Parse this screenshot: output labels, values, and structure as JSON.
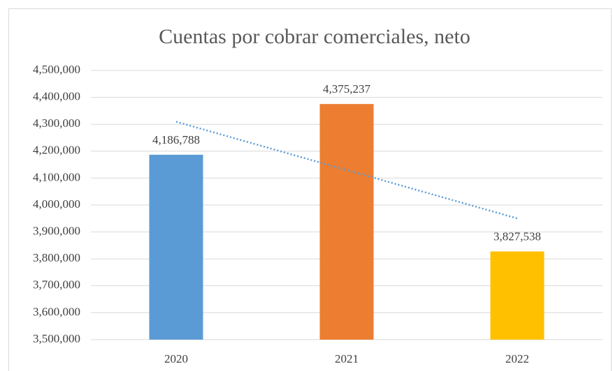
{
  "chart_data": {
    "type": "bar",
    "title": "Cuentas por cobrar comerciales, neto",
    "categories": [
      "2020",
      "2021",
      "2022"
    ],
    "values": [
      4186788,
      4375237,
      3827538
    ],
    "value_labels": [
      "4,186,788",
      "4,375,237",
      "3,827,538"
    ],
    "colors": [
      "#5b9bd5",
      "#ed7d31",
      "#ffc000"
    ],
    "ylim": [
      3500000,
      4500000
    ],
    "yticks": [
      {
        "value": 3500000,
        "label": "3,500,000"
      },
      {
        "value": 3600000,
        "label": "3,600,000"
      },
      {
        "value": 3700000,
        "label": "3,700,000"
      },
      {
        "value": 3800000,
        "label": "3,800,000"
      },
      {
        "value": 3900000,
        "label": "3,900,000"
      },
      {
        "value": 4000000,
        "label": "4,000,000"
      },
      {
        "value": 4100000,
        "label": "4,100,000"
      },
      {
        "value": 4200000,
        "label": "4,200,000"
      },
      {
        "value": 4300000,
        "label": "4,300,000"
      },
      {
        "value": 4400000,
        "label": "4,400,000"
      },
      {
        "value": 4500000,
        "label": "4,500,000"
      }
    ],
    "grid": true,
    "trendline": "linear",
    "trendline_color": "#5b9bd5"
  }
}
